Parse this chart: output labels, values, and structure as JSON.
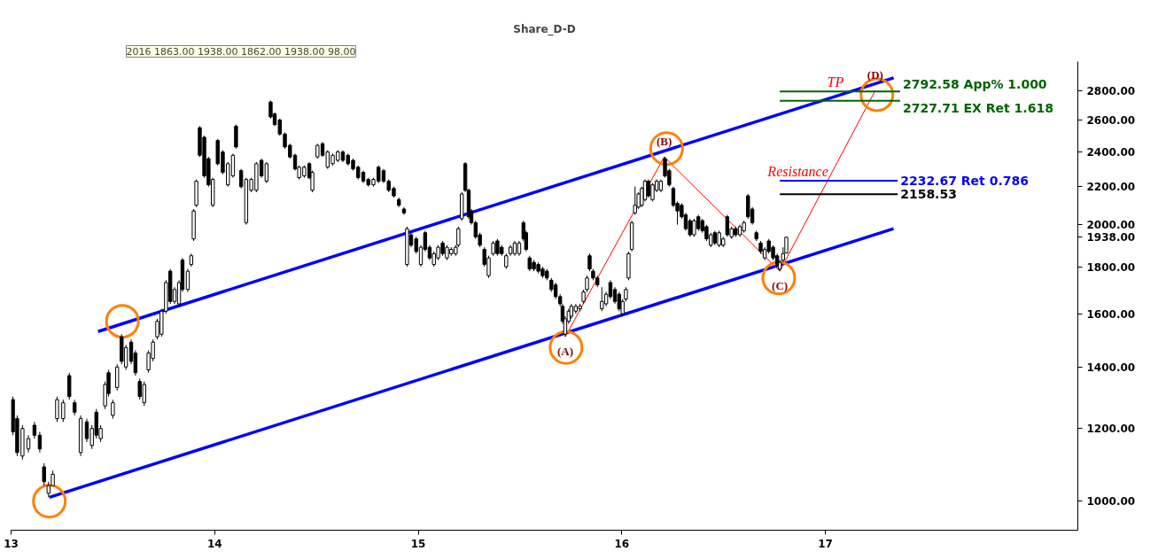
{
  "chart_data": {
    "type": "candlestick",
    "title": "Share_D-D",
    "log": "y",
    "color": "#000000",
    "xlim": [
      13,
      18.24
    ],
    "xticks": [
      13,
      14,
      15,
      16,
      17
    ],
    "ylim": [
      930,
      3010
    ],
    "yticks": [
      {
        "value": 1000,
        "label": "1000.00"
      },
      {
        "value": 1200,
        "label": "1200.00"
      },
      {
        "value": 1400,
        "label": "1400.00"
      },
      {
        "value": 1600,
        "label": "1600.00"
      },
      {
        "value": 1800,
        "label": "1800.00"
      },
      {
        "value": 1938,
        "label": "1938.00"
      },
      {
        "value": 2000,
        "label": "2000.00"
      },
      {
        "value": 2200,
        "label": "2200.00"
      },
      {
        "value": 2400,
        "label": "2400.00"
      },
      {
        "value": 2600,
        "label": "2600.00"
      },
      {
        "value": 2800,
        "label": "2800.00"
      }
    ],
    "x": [
      13.009,
      13.03,
      13.056,
      13.085,
      13.115,
      13.141,
      13.162,
      13.184,
      13.205,
      13.226,
      13.256,
      13.286,
      13.312,
      13.342,
      13.372,
      13.397,
      13.419,
      13.44,
      13.462,
      13.479,
      13.5,
      13.521,
      13.543,
      13.564,
      13.59,
      13.611,
      13.632,
      13.654,
      13.675,
      13.697,
      13.718,
      13.739,
      13.761,
      13.782,
      13.803,
      13.825,
      13.842,
      13.868,
      13.885,
      13.897,
      13.91,
      13.927,
      13.949,
      13.97,
      13.991,
      14.015,
      14.04,
      14.065,
      14.09,
      14.105,
      14.13,
      14.155,
      14.18,
      14.205,
      14.23,
      14.255,
      14.275,
      14.295,
      14.32,
      14.345,
      14.37,
      14.395,
      14.415,
      14.44,
      14.465,
      14.48,
      14.505,
      14.53,
      14.555,
      14.58,
      14.605,
      14.63,
      14.655,
      14.68,
      14.705,
      14.73,
      14.755,
      14.78,
      14.805,
      14.83,
      14.855,
      14.88,
      14.905,
      14.93,
      14.945,
      14.965,
      14.99,
      15.013,
      15.034,
      15.056,
      15.077,
      15.098,
      15.12,
      15.141,
      15.162,
      15.184,
      15.197,
      15.214,
      15.231,
      15.248,
      15.261,
      15.282,
      15.303,
      15.325,
      15.346,
      15.368,
      15.389,
      15.41,
      15.432,
      15.453,
      15.474,
      15.496,
      15.517,
      15.53,
      15.547,
      15.568,
      15.59,
      15.611,
      15.632,
      15.654,
      15.675,
      15.697,
      15.709,
      15.722,
      15.739,
      15.752,
      15.774,
      15.795,
      15.812,
      15.829,
      15.842,
      15.859,
      15.88,
      15.902,
      15.923,
      15.944,
      15.966,
      15.987,
      16.004,
      16.02,
      16.033,
      16.049,
      16.065,
      16.082,
      16.098,
      16.114,
      16.131,
      16.151,
      16.171,
      16.192,
      16.212,
      16.233,
      16.253,
      16.273,
      16.294,
      16.314,
      16.335,
      16.355,
      16.376,
      16.396,
      16.416,
      16.437,
      16.457,
      16.478,
      16.498,
      16.518,
      16.539,
      16.559,
      16.58,
      16.6,
      16.62,
      16.641,
      16.661,
      16.682,
      16.702,
      16.722,
      16.743,
      16.763,
      16.776,
      16.792,
      16.808
    ],
    "ohlc": [
      [
        1290,
        1300,
        1180,
        1190
      ],
      [
        1230,
        1240,
        1120,
        1130
      ],
      [
        1120,
        1210,
        1110,
        1200
      ],
      [
        1140,
        1180,
        1130,
        1170
      ],
      [
        1210,
        1220,
        1170,
        1180
      ],
      [
        1180,
        1190,
        1130,
        1140
      ],
      [
        1090,
        1100,
        1040,
        1050
      ],
      [
        1020,
        1050,
        1010,
        1040
      ],
      [
        1040,
        1080,
        1040,
        1070
      ],
      [
        1230,
        1300,
        1220,
        1290
      ],
      [
        1230,
        1290,
        1220,
        1280
      ],
      [
        1370,
        1380,
        1290,
        1300
      ],
      [
        1280,
        1290,
        1240,
        1250
      ],
      [
        1130,
        1240,
        1120,
        1230
      ],
      [
        1220,
        1230,
        1160,
        1170
      ],
      [
        1150,
        1210,
        1140,
        1200
      ],
      [
        1250,
        1260,
        1170,
        1180
      ],
      [
        1170,
        1210,
        1160,
        1200
      ],
      [
        1270,
        1350,
        1260,
        1340
      ],
      [
        1380,
        1390,
        1300,
        1310
      ],
      [
        1240,
        1290,
        1230,
        1280
      ],
      [
        1330,
        1410,
        1320,
        1400
      ],
      [
        1510,
        1520,
        1410,
        1420
      ],
      [
        1400,
        1480,
        1390,
        1470
      ],
      [
        1490,
        1500,
        1410,
        1420
      ],
      [
        1450,
        1460,
        1370,
        1380
      ],
      [
        1350,
        1360,
        1290,
        1300
      ],
      [
        1280,
        1350,
        1270,
        1340
      ],
      [
        1390,
        1460,
        1380,
        1450
      ],
      [
        1430,
        1500,
        1420,
        1490
      ],
      [
        1510,
        1580,
        1500,
        1570
      ],
      [
        1520,
        1620,
        1510,
        1610
      ],
      [
        1610,
        1740,
        1600,
        1730
      ],
      [
        1780,
        1790,
        1640,
        1650
      ],
      [
        1650,
        1710,
        1640,
        1700
      ],
      [
        1640,
        1740,
        1630,
        1730
      ],
      [
        1830,
        1840,
        1690,
        1700
      ],
      [
        1700,
        1790,
        1690,
        1780
      ],
      [
        1810,
        1860,
        1800,
        1850
      ],
      [
        1930,
        2080,
        1920,
        2070
      ],
      [
        2100,
        2240,
        2090,
        2230
      ],
      [
        2550,
        2560,
        2370,
        2380
      ],
      [
        2490,
        2500,
        2250,
        2260
      ],
      [
        2360,
        2370,
        2200,
        2210
      ],
      [
        2100,
        2250,
        2090,
        2240
      ],
      [
        2470,
        2480,
        2320,
        2330
      ],
      [
        2400,
        2410,
        2270,
        2280
      ],
      [
        2210,
        2340,
        2200,
        2330
      ],
      [
        2260,
        2390,
        2250,
        2380
      ],
      [
        2560,
        2570,
        2420,
        2430
      ],
      [
        2290,
        2300,
        2190,
        2200
      ],
      [
        2010,
        2250,
        2000,
        2240
      ],
      [
        2180,
        2250,
        2170,
        2240
      ],
      [
        2180,
        2340,
        2170,
        2330
      ],
      [
        2350,
        2360,
        2250,
        2260
      ],
      [
        2230,
        2340,
        2220,
        2330
      ],
      [
        2720,
        2730,
        2610,
        2620
      ],
      [
        2640,
        2650,
        2560,
        2570
      ],
      [
        2600,
        2610,
        2500,
        2510
      ],
      [
        2510,
        2520,
        2420,
        2430
      ],
      [
        2440,
        2450,
        2360,
        2370
      ],
      [
        2380,
        2390,
        2290,
        2300
      ],
      [
        2250,
        2320,
        2240,
        2310
      ],
      [
        2260,
        2320,
        2250,
        2310
      ],
      [
        2330,
        2340,
        2240,
        2250
      ],
      [
        2180,
        2290,
        2170,
        2280
      ],
      [
        2370,
        2450,
        2360,
        2440
      ],
      [
        2450,
        2460,
        2370,
        2380
      ],
      [
        2310,
        2410,
        2300,
        2400
      ],
      [
        2330,
        2390,
        2320,
        2380
      ],
      [
        2350,
        2410,
        2340,
        2400
      ],
      [
        2400,
        2410,
        2340,
        2350
      ],
      [
        2380,
        2390,
        2320,
        2330
      ],
      [
        2350,
        2360,
        2290,
        2300
      ],
      [
        2310,
        2320,
        2240,
        2250
      ],
      [
        2280,
        2290,
        2220,
        2230
      ],
      [
        2240,
        2250,
        2200,
        2210
      ],
      [
        2210,
        2250,
        2200,
        2240
      ],
      [
        2310,
        2320,
        2220,
        2230
      ],
      [
        2290,
        2300,
        2220,
        2230
      ],
      [
        2230,
        2240,
        2170,
        2180
      ],
      [
        2190,
        2200,
        2140,
        2150
      ],
      [
        2130,
        2140,
        2090,
        2100
      ],
      [
        2080,
        2090,
        2050,
        2060
      ],
      [
        1810,
        1990,
        1800,
        1980
      ],
      [
        1950,
        1960,
        1890,
        1900
      ],
      [
        1930,
        1940,
        1860,
        1870
      ],
      [
        1810,
        1900,
        1800,
        1890
      ],
      [
        1960,
        1970,
        1870,
        1880
      ],
      [
        1890,
        1900,
        1830,
        1840
      ],
      [
        1810,
        1870,
        1800,
        1860
      ],
      [
        1840,
        1900,
        1830,
        1890
      ],
      [
        1910,
        1920,
        1850,
        1860
      ],
      [
        1840,
        1900,
        1830,
        1890
      ],
      [
        1860,
        1890,
        1850,
        1880
      ],
      [
        1860,
        1900,
        1850,
        1890
      ],
      [
        1900,
        1990,
        1890,
        1980
      ],
      [
        2030,
        2170,
        2020,
        2160
      ],
      [
        2330,
        2340,
        2170,
        2180
      ],
      [
        2180,
        2190,
        2030,
        2040
      ],
      [
        2070,
        2080,
        2000,
        2010
      ],
      [
        2010,
        2020,
        1930,
        1940
      ],
      [
        1950,
        1960,
        1890,
        1900
      ],
      [
        1880,
        1890,
        1800,
        1810
      ],
      [
        1760,
        1850,
        1750,
        1840
      ],
      [
        1860,
        1920,
        1850,
        1910
      ],
      [
        1920,
        1930,
        1850,
        1860
      ],
      [
        1890,
        1900,
        1850,
        1860
      ],
      [
        1800,
        1860,
        1790,
        1850
      ],
      [
        1860,
        1900,
        1850,
        1890
      ],
      [
        1860,
        1920,
        1850,
        1910
      ],
      [
        1860,
        1920,
        1850,
        1910
      ],
      [
        2010,
        2020,
        1920,
        1930
      ],
      [
        1960,
        1970,
        1870,
        1880
      ],
      [
        1840,
        1850,
        1780,
        1790
      ],
      [
        1820,
        1830,
        1780,
        1790
      ],
      [
        1810,
        1820,
        1770,
        1780
      ],
      [
        1790,
        1800,
        1750,
        1760
      ],
      [
        1780,
        1790,
        1740,
        1750
      ],
      [
        1740,
        1750,
        1690,
        1700
      ],
      [
        1720,
        1730,
        1660,
        1670
      ],
      [
        1670,
        1680,
        1630,
        1640
      ],
      [
        1630,
        1640,
        1560,
        1570
      ],
      [
        1520,
        1590,
        1510,
        1580
      ],
      [
        1570,
        1620,
        1560,
        1610
      ],
      [
        1590,
        1640,
        1580,
        1630
      ],
      [
        1610,
        1640,
        1600,
        1630
      ],
      [
        1620,
        1640,
        1610,
        1630
      ],
      [
        1650,
        1700,
        1640,
        1690
      ],
      [
        1700,
        1760,
        1690,
        1750
      ],
      [
        1850,
        1860,
        1780,
        1790
      ],
      [
        1780,
        1790,
        1740,
        1750
      ],
      [
        1750,
        1760,
        1710,
        1720
      ],
      [
        1620,
        1710,
        1610,
        1650
      ],
      [
        1640,
        1690,
        1630,
        1680
      ],
      [
        1730,
        1740,
        1660,
        1670
      ],
      [
        1700,
        1710,
        1640,
        1650
      ],
      [
        1680,
        1690,
        1610,
        1620
      ],
      [
        1600,
        1660,
        1590,
        1650
      ],
      [
        1660,
        1710,
        1650,
        1700
      ],
      [
        1750,
        1870,
        1740,
        1860
      ],
      [
        1880,
        2020,
        1870,
        2010
      ],
      [
        2060,
        2200,
        2050,
        2100
      ],
      [
        2090,
        2170,
        2080,
        2160
      ],
      [
        2100,
        2200,
        2090,
        2190
      ],
      [
        2130,
        2240,
        2120,
        2230
      ],
      [
        2230,
        2240,
        2140,
        2150
      ],
      [
        2130,
        2220,
        2120,
        2210
      ],
      [
        2180,
        2240,
        2170,
        2230
      ],
      [
        2180,
        2240,
        2170,
        2230
      ],
      [
        2360,
        2370,
        2250,
        2260
      ],
      [
        2290,
        2300,
        2200,
        2210
      ],
      [
        2190,
        2200,
        2090,
        2100
      ],
      [
        2110,
        2120,
        2000,
        2070
      ],
      [
        2100,
        2110,
        2030,
        2040
      ],
      [
        2050,
        2060,
        1970,
        1980
      ],
      [
        2020,
        2030,
        1940,
        1950
      ],
      [
        1950,
        2030,
        1940,
        2020
      ],
      [
        2040,
        2050,
        1970,
        1980
      ],
      [
        2020,
        2030,
        1960,
        1970
      ],
      [
        1990,
        2000,
        1920,
        1930
      ],
      [
        1900,
        1960,
        1890,
        1950
      ],
      [
        1960,
        1970,
        1900,
        1910
      ],
      [
        1900,
        1970,
        1890,
        1960
      ],
      [
        1900,
        1940,
        1890,
        1930
      ],
      [
        2040,
        2050,
        1940,
        1950
      ],
      [
        1940,
        1990,
        1930,
        1980
      ],
      [
        1980,
        1990,
        1940,
        1950
      ],
      [
        1950,
        2000,
        1940,
        1990
      ],
      [
        1970,
        2020,
        1960,
        2010
      ],
      [
        2150,
        2160,
        2030,
        2040
      ],
      [
        2080,
        2090,
        2000,
        2010
      ],
      [
        1960,
        1970,
        1920,
        1930
      ],
      [
        1910,
        1920,
        1860,
        1870
      ],
      [
        1840,
        1890,
        1830,
        1880
      ],
      [
        1920,
        1930,
        1860,
        1870
      ],
      [
        1890,
        1900,
        1830,
        1840
      ],
      [
        1850,
        1860,
        1800,
        1810
      ],
      [
        1790,
        1830,
        1780,
        1820
      ],
      [
        1830,
        1890,
        1820,
        1860
      ],
      [
        1863,
        1938,
        1862,
        1938
      ]
    ],
    "series": [
      {
        "type": "line",
        "color": "#0000ff",
        "x": [
          13.427,
          17.335
        ],
        "values": [
          1530,
          2890
        ]
      },
      {
        "type": "line",
        "color": "#0000ff",
        "x": [
          13.188,
          17.335
        ],
        "values": [
          1010,
          1980
        ]
      },
      {
        "type": "line",
        "color": "#ff0000",
        "x": [
          15.722,
          16.208,
          16.776,
          17.245
        ],
        "values": [
          1510,
          2370,
          1780,
          2800
        ],
        "value_labels": [
          "(A)",
          "(B)",
          "(C)",
          "(D)"
        ]
      },
      {
        "type": "scatter",
        "marker": "circle",
        "color": "#ff8000",
        "x": [
          13.188,
          13.547,
          15.726,
          16.22,
          16.771,
          17.253
        ],
        "values": [
          1000,
          1570,
          1470,
          2420,
          1750,
          2770
        ]
      },
      {
        "type": "line",
        "name": "2792.58 App% 1.000",
        "color": "#006400",
        "x": [
          16.776,
          17.367
        ],
        "values": [
          2792.58,
          2792.58
        ]
      },
      {
        "type": "line",
        "name": "2727.71 EX Ret 1.618",
        "color": "#006400",
        "x": [
          16.776,
          17.367
        ],
        "values": [
          2727.71,
          2727.71
        ]
      },
      {
        "type": "line",
        "name": "2232.67 Ret 0.786",
        "color": "#0000ff",
        "x": [
          16.776,
          17.355
        ],
        "values": [
          2232.67,
          2232.67
        ]
      },
      {
        "type": "line",
        "name": "2158.53",
        "color": "#000000",
        "x": [
          16.776,
          17.355
        ],
        "values": [
          2158.53,
          2158.53
        ]
      }
    ],
    "annotations": [
      "2016 1863.00 1938.00 1862.00 1938.00 98.00",
      {
        "text": "TP",
        "x": 17.049,
        "y": 2792.58
      },
      {
        "text": "Resistance",
        "x": 16.865,
        "y": 2232.67
      }
    ]
  }
}
